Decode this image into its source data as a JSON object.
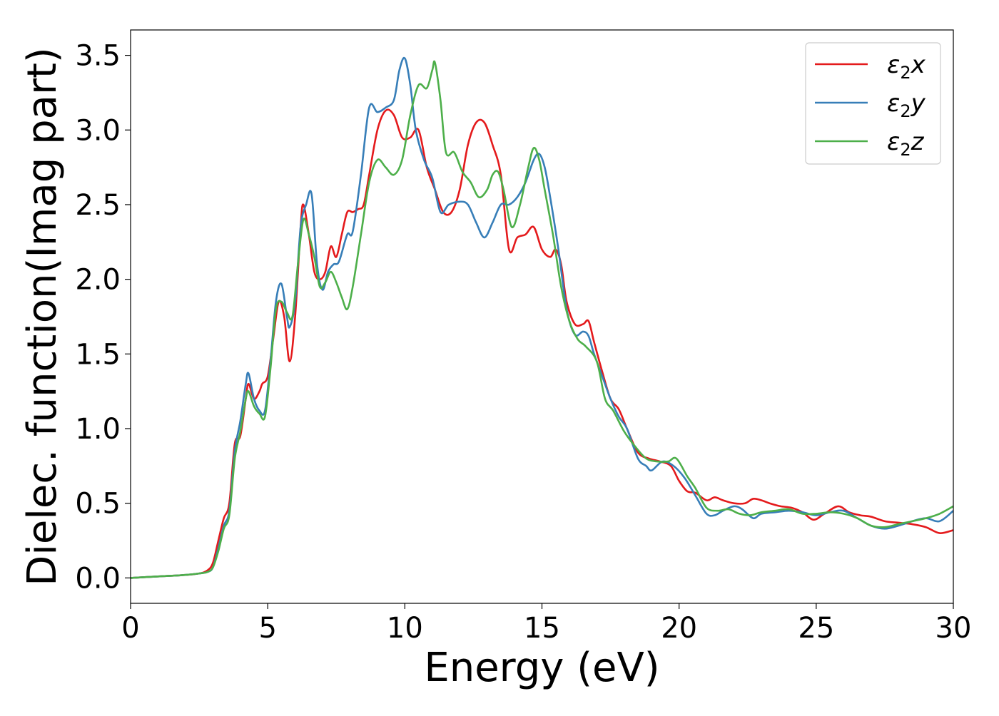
{
  "chart_data": {
    "type": "line",
    "title": "",
    "xlabel": "Energy (eV)",
    "ylabel": "Dielec. function(Imag part)",
    "xlim": [
      0,
      30
    ],
    "ylim": [
      -0.17,
      3.67
    ],
    "xticks": [
      0,
      5,
      10,
      15,
      20,
      25,
      30
    ],
    "yticks": [
      0.0,
      0.5,
      1.0,
      1.5,
      2.0,
      2.5,
      3.0,
      3.5
    ],
    "xtick_labels": [
      "0",
      "5",
      "10",
      "15",
      "20",
      "25",
      "30"
    ],
    "ytick_labels": [
      "0.0",
      "0.5",
      "1.0",
      "1.5",
      "2.0",
      "2.5",
      "3.0",
      "3.5"
    ],
    "grid": false,
    "legend_position": "top-right",
    "series": [
      {
        "name": "ε₂x",
        "legend_base": "ε",
        "legend_sub": "2",
        "legend_suffix": "x",
        "color": "#e41a1c",
        "points": [
          [
            0,
            0
          ],
          [
            1,
            0.01
          ],
          [
            2,
            0.02
          ],
          [
            2.5,
            0.03
          ],
          [
            2.8,
            0.05
          ],
          [
            3.0,
            0.1
          ],
          [
            3.2,
            0.25
          ],
          [
            3.4,
            0.4
          ],
          [
            3.6,
            0.5
          ],
          [
            3.8,
            0.9
          ],
          [
            4.0,
            0.95
          ],
          [
            4.2,
            1.2
          ],
          [
            4.3,
            1.3
          ],
          [
            4.5,
            1.2
          ],
          [
            4.7,
            1.25
          ],
          [
            4.8,
            1.3
          ],
          [
            5.0,
            1.35
          ],
          [
            5.2,
            1.6
          ],
          [
            5.4,
            1.85
          ],
          [
            5.6,
            1.75
          ],
          [
            5.8,
            1.45
          ],
          [
            6.0,
            1.75
          ],
          [
            6.2,
            2.35
          ],
          [
            6.3,
            2.5
          ],
          [
            6.5,
            2.3
          ],
          [
            6.7,
            2.05
          ],
          [
            6.9,
            2.0
          ],
          [
            7.1,
            2.05
          ],
          [
            7.3,
            2.22
          ],
          [
            7.5,
            2.15
          ],
          [
            7.7,
            2.3
          ],
          [
            7.9,
            2.45
          ],
          [
            8.1,
            2.45
          ],
          [
            8.3,
            2.47
          ],
          [
            8.5,
            2.5
          ],
          [
            8.7,
            2.7
          ],
          [
            9.0,
            3.0
          ],
          [
            9.3,
            3.13
          ],
          [
            9.6,
            3.1
          ],
          [
            9.9,
            2.95
          ],
          [
            10.2,
            2.95
          ],
          [
            10.5,
            3.0
          ],
          [
            10.8,
            2.75
          ],
          [
            11.1,
            2.6
          ],
          [
            11.4,
            2.45
          ],
          [
            11.7,
            2.45
          ],
          [
            12.0,
            2.6
          ],
          [
            12.3,
            2.9
          ],
          [
            12.6,
            3.05
          ],
          [
            12.9,
            3.05
          ],
          [
            13.2,
            2.9
          ],
          [
            13.5,
            2.7
          ],
          [
            13.8,
            2.2
          ],
          [
            14.1,
            2.28
          ],
          [
            14.4,
            2.3
          ],
          [
            14.7,
            2.35
          ],
          [
            15.0,
            2.2
          ],
          [
            15.3,
            2.15
          ],
          [
            15.5,
            2.2
          ],
          [
            15.7,
            2.1
          ],
          [
            15.9,
            1.85
          ],
          [
            16.2,
            1.7
          ],
          [
            16.5,
            1.7
          ],
          [
            16.7,
            1.72
          ],
          [
            16.9,
            1.58
          ],
          [
            17.2,
            1.38
          ],
          [
            17.5,
            1.2
          ],
          [
            17.8,
            1.13
          ],
          [
            18.1,
            1.0
          ],
          [
            18.5,
            0.84
          ],
          [
            18.9,
            0.8
          ],
          [
            19.3,
            0.78
          ],
          [
            19.7,
            0.75
          ],
          [
            20.0,
            0.65
          ],
          [
            20.3,
            0.58
          ],
          [
            20.6,
            0.57
          ],
          [
            21.0,
            0.52
          ],
          [
            21.3,
            0.54
          ],
          [
            21.6,
            0.52
          ],
          [
            22.0,
            0.5
          ],
          [
            22.4,
            0.5
          ],
          [
            22.7,
            0.53
          ],
          [
            23.0,
            0.52
          ],
          [
            23.3,
            0.5
          ],
          [
            23.7,
            0.48
          ],
          [
            24.1,
            0.47
          ],
          [
            24.5,
            0.44
          ],
          [
            24.9,
            0.39
          ],
          [
            25.3,
            0.43
          ],
          [
            25.8,
            0.48
          ],
          [
            26.2,
            0.44
          ],
          [
            26.6,
            0.42
          ],
          [
            27.0,
            0.41
          ],
          [
            27.5,
            0.38
          ],
          [
            28.0,
            0.37
          ],
          [
            28.5,
            0.36
          ],
          [
            29.0,
            0.34
          ],
          [
            29.5,
            0.3
          ],
          [
            30,
            0.32
          ]
        ]
      },
      {
        "name": "ε₂y",
        "legend_base": "ε",
        "legend_sub": "2",
        "legend_suffix": "y",
        "color": "#377eb8",
        "points": [
          [
            0,
            0
          ],
          [
            1,
            0.01
          ],
          [
            2,
            0.02
          ],
          [
            2.5,
            0.03
          ],
          [
            2.8,
            0.04
          ],
          [
            3.0,
            0.07
          ],
          [
            3.2,
            0.2
          ],
          [
            3.4,
            0.35
          ],
          [
            3.6,
            0.45
          ],
          [
            3.8,
            0.85
          ],
          [
            4.0,
            1.05
          ],
          [
            4.2,
            1.3
          ],
          [
            4.3,
            1.37
          ],
          [
            4.5,
            1.2
          ],
          [
            4.7,
            1.12
          ],
          [
            4.9,
            1.12
          ],
          [
            5.1,
            1.45
          ],
          [
            5.3,
            1.85
          ],
          [
            5.5,
            1.97
          ],
          [
            5.7,
            1.75
          ],
          [
            5.8,
            1.68
          ],
          [
            6.0,
            1.85
          ],
          [
            6.2,
            2.35
          ],
          [
            6.4,
            2.5
          ],
          [
            6.6,
            2.57
          ],
          [
            6.8,
            2.1
          ],
          [
            7.0,
            1.93
          ],
          [
            7.2,
            2.05
          ],
          [
            7.4,
            2.1
          ],
          [
            7.6,
            2.12
          ],
          [
            7.9,
            2.3
          ],
          [
            8.1,
            2.32
          ],
          [
            8.4,
            2.7
          ],
          [
            8.7,
            3.15
          ],
          [
            9.0,
            3.12
          ],
          [
            9.3,
            3.15
          ],
          [
            9.6,
            3.2
          ],
          [
            9.8,
            3.4
          ],
          [
            10.0,
            3.48
          ],
          [
            10.2,
            3.3
          ],
          [
            10.4,
            3.0
          ],
          [
            10.7,
            2.8
          ],
          [
            11.0,
            2.68
          ],
          [
            11.3,
            2.45
          ],
          [
            11.6,
            2.5
          ],
          [
            12.0,
            2.52
          ],
          [
            12.3,
            2.5
          ],
          [
            12.6,
            2.38
          ],
          [
            12.9,
            2.28
          ],
          [
            13.2,
            2.38
          ],
          [
            13.5,
            2.5
          ],
          [
            13.8,
            2.5
          ],
          [
            14.1,
            2.55
          ],
          [
            14.4,
            2.65
          ],
          [
            14.7,
            2.8
          ],
          [
            14.9,
            2.84
          ],
          [
            15.1,
            2.75
          ],
          [
            15.3,
            2.55
          ],
          [
            15.6,
            2.2
          ],
          [
            15.9,
            1.8
          ],
          [
            16.2,
            1.63
          ],
          [
            16.5,
            1.65
          ],
          [
            16.7,
            1.62
          ],
          [
            16.9,
            1.5
          ],
          [
            17.2,
            1.35
          ],
          [
            17.5,
            1.2
          ],
          [
            17.8,
            1.08
          ],
          [
            18.1,
            1.0
          ],
          [
            18.5,
            0.8
          ],
          [
            18.8,
            0.75
          ],
          [
            19.0,
            0.72
          ],
          [
            19.4,
            0.78
          ],
          [
            19.8,
            0.75
          ],
          [
            20.2,
            0.67
          ],
          [
            20.6,
            0.55
          ],
          [
            21.0,
            0.43
          ],
          [
            21.3,
            0.42
          ],
          [
            21.6,
            0.45
          ],
          [
            22.0,
            0.48
          ],
          [
            22.3,
            0.46
          ],
          [
            22.7,
            0.4
          ],
          [
            23.0,
            0.43
          ],
          [
            23.5,
            0.44
          ],
          [
            24.0,
            0.45
          ],
          [
            24.5,
            0.44
          ],
          [
            25.0,
            0.42
          ],
          [
            25.5,
            0.44
          ],
          [
            26.0,
            0.45
          ],
          [
            26.5,
            0.4
          ],
          [
            27.0,
            0.35
          ],
          [
            27.5,
            0.33
          ],
          [
            28.0,
            0.35
          ],
          [
            28.5,
            0.38
          ],
          [
            29.0,
            0.4
          ],
          [
            29.5,
            0.38
          ],
          [
            30,
            0.45
          ]
        ]
      },
      {
        "name": "ε₂z",
        "legend_base": "ε",
        "legend_sub": "2",
        "legend_suffix": "z",
        "color": "#4daf4a",
        "points": [
          [
            0,
            0
          ],
          [
            1,
            0.01
          ],
          [
            2,
            0.02
          ],
          [
            2.5,
            0.03
          ],
          [
            2.8,
            0.04
          ],
          [
            3.0,
            0.07
          ],
          [
            3.2,
            0.18
          ],
          [
            3.4,
            0.33
          ],
          [
            3.6,
            0.42
          ],
          [
            3.8,
            0.8
          ],
          [
            4.0,
            0.98
          ],
          [
            4.2,
            1.2
          ],
          [
            4.3,
            1.25
          ],
          [
            4.5,
            1.15
          ],
          [
            4.7,
            1.1
          ],
          [
            4.9,
            1.08
          ],
          [
            5.1,
            1.4
          ],
          [
            5.3,
            1.8
          ],
          [
            5.5,
            1.85
          ],
          [
            5.7,
            1.78
          ],
          [
            5.9,
            1.75
          ],
          [
            6.1,
            2.1
          ],
          [
            6.3,
            2.4
          ],
          [
            6.5,
            2.3
          ],
          [
            6.7,
            2.15
          ],
          [
            6.9,
            1.95
          ],
          [
            7.1,
            1.98
          ],
          [
            7.3,
            2.05
          ],
          [
            7.5,
            1.98
          ],
          [
            7.7,
            1.88
          ],
          [
            7.9,
            1.8
          ],
          [
            8.1,
            1.95
          ],
          [
            8.4,
            2.3
          ],
          [
            8.7,
            2.65
          ],
          [
            9.0,
            2.8
          ],
          [
            9.3,
            2.75
          ],
          [
            9.6,
            2.7
          ],
          [
            9.9,
            2.8
          ],
          [
            10.2,
            3.1
          ],
          [
            10.5,
            3.3
          ],
          [
            10.8,
            3.28
          ],
          [
            11.0,
            3.4
          ],
          [
            11.1,
            3.45
          ],
          [
            11.3,
            3.2
          ],
          [
            11.5,
            2.85
          ],
          [
            11.8,
            2.85
          ],
          [
            12.1,
            2.72
          ],
          [
            12.4,
            2.65
          ],
          [
            12.7,
            2.55
          ],
          [
            13.0,
            2.6
          ],
          [
            13.2,
            2.7
          ],
          [
            13.4,
            2.72
          ],
          [
            13.6,
            2.6
          ],
          [
            13.9,
            2.35
          ],
          [
            14.2,
            2.5
          ],
          [
            14.5,
            2.75
          ],
          [
            14.7,
            2.88
          ],
          [
            14.9,
            2.8
          ],
          [
            15.1,
            2.6
          ],
          [
            15.4,
            2.3
          ],
          [
            15.7,
            1.95
          ],
          [
            16.0,
            1.72
          ],
          [
            16.3,
            1.6
          ],
          [
            16.6,
            1.55
          ],
          [
            17.0,
            1.45
          ],
          [
            17.3,
            1.2
          ],
          [
            17.6,
            1.12
          ],
          [
            18.0,
            0.98
          ],
          [
            18.4,
            0.88
          ],
          [
            18.8,
            0.8
          ],
          [
            19.2,
            0.78
          ],
          [
            19.6,
            0.78
          ],
          [
            19.9,
            0.8
          ],
          [
            20.3,
            0.68
          ],
          [
            20.6,
            0.6
          ],
          [
            21.0,
            0.47
          ],
          [
            21.4,
            0.45
          ],
          [
            21.8,
            0.46
          ],
          [
            22.2,
            0.43
          ],
          [
            22.6,
            0.42
          ],
          [
            23.0,
            0.44
          ],
          [
            23.5,
            0.45
          ],
          [
            24.0,
            0.46
          ],
          [
            24.5,
            0.43
          ],
          [
            25.0,
            0.43
          ],
          [
            25.5,
            0.44
          ],
          [
            26.0,
            0.43
          ],
          [
            26.5,
            0.4
          ],
          [
            27.0,
            0.35
          ],
          [
            27.5,
            0.34
          ],
          [
            28.0,
            0.36
          ],
          [
            28.5,
            0.38
          ],
          [
            29.0,
            0.4
          ],
          [
            29.5,
            0.43
          ],
          [
            30,
            0.48
          ]
        ]
      }
    ]
  }
}
